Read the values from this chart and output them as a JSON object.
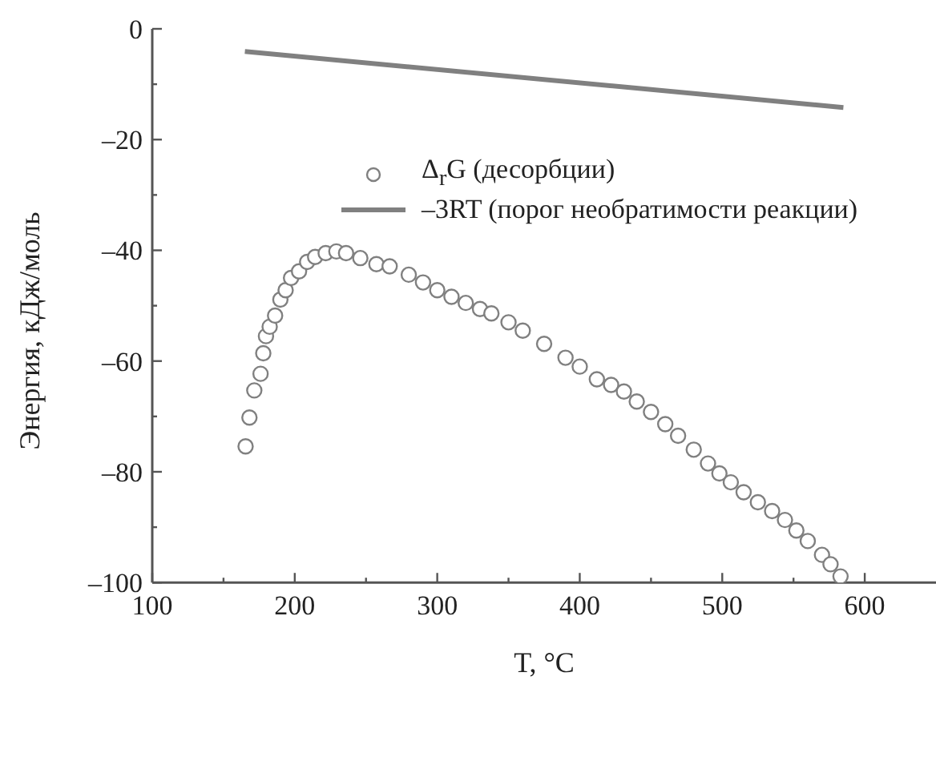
{
  "chart_data": {
    "type": "scatter",
    "xlabel": "T, °C",
    "ylabel": "Энергия, кДж/моль",
    "xlim": [
      100,
      650
    ],
    "ylim": [
      -100,
      0
    ],
    "xticks": [
      100,
      {
        "value": 150,
        "label": null
      },
      200,
      {
        "value": 250,
        "label": null
      },
      300,
      {
        "value": 350,
        "label": null
      },
      400,
      {
        "value": 450,
        "label": null
      },
      500,
      {
        "value": 550,
        "label": null
      },
      600
    ],
    "yticks": [
      {
        "value": -100,
        "label": "–100"
      },
      {
        "value": -90,
        "label": null
      },
      {
        "value": -80,
        "label": "–80"
      },
      {
        "value": -70,
        "label": null
      },
      {
        "value": -60,
        "label": "–60"
      },
      {
        "value": -50,
        "label": null
      },
      {
        "value": -40,
        "label": "–40"
      },
      {
        "value": -30,
        "label": null
      },
      {
        "value": -20,
        "label": "–20"
      },
      {
        "value": -10,
        "label": null
      },
      0
    ],
    "grid": false,
    "legend": "top",
    "series": [
      {
        "name": "Δ$_{r}$G (десорбции)",
        "color": "#808080",
        "marker": "circle",
        "x": [
          165.5,
          168.2,
          171.6,
          176,
          177.9,
          179.8,
          182.4,
          186.2,
          189.9,
          193.6,
          197.4,
          203,
          208.7,
          214.3,
          221.7,
          229.2,
          236,
          246,
          257.3,
          266.6,
          280,
          290,
          300,
          310,
          320,
          330,
          338,
          350,
          360,
          375,
          390,
          400,
          412,
          422,
          431,
          440,
          450,
          460,
          469,
          480,
          490,
          498,
          506,
          515,
          525,
          535,
          544,
          552,
          560,
          570,
          576,
          583
        ],
        "values": [
          -75.4,
          -70.2,
          -65.3,
          -62.3,
          -58.6,
          -55.5,
          -53.8,
          -51.8,
          -48.9,
          -47.2,
          -45,
          -43.8,
          -42.1,
          -41.2,
          -40.5,
          -40.2,
          -40.5,
          -41.4,
          -42.5,
          -42.9,
          -44.4,
          -45.8,
          -47.2,
          -48.4,
          -49.5,
          -50.6,
          -51.4,
          -53,
          -54.5,
          -56.9,
          -59.4,
          -61,
          -63.3,
          -64.3,
          -65.5,
          -67.3,
          -69.2,
          -71.4,
          -73.5,
          -76,
          -78.5,
          -80.3,
          -81.9,
          -83.7,
          -85.5,
          -87.1,
          -88.7,
          -90.6,
          -92.5,
          -95,
          -96.7,
          -98.9
        ]
      },
      {
        "name": "–3RT (порог необратимости реакции)",
        "type": "line",
        "color": "#808080",
        "marker": "none",
        "line_style": "solid",
        "x": [
          165,
          585
        ],
        "values": [
          -4.1,
          -14.2
        ]
      }
    ]
  }
}
